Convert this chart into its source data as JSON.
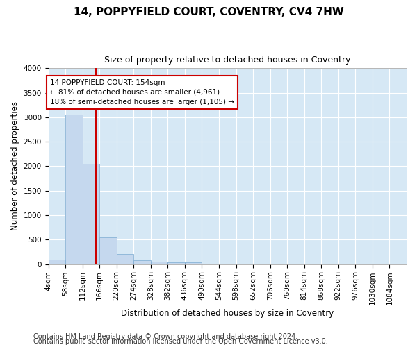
{
  "title": "14, POPPYFIELD COURT, COVENTRY, CV4 7HW",
  "subtitle": "Size of property relative to detached houses in Coventry",
  "xlabel": "Distribution of detached houses by size in Coventry",
  "ylabel": "Number of detached properties",
  "footer_line1": "Contains HM Land Registry data © Crown copyright and database right 2024.",
  "footer_line2": "Contains public sector information licensed under the Open Government Licence v3.0.",
  "property_size": 154,
  "annotation_line1": "14 POPPYFIELD COURT: 154sqm",
  "annotation_line2": "← 81% of detached houses are smaller (4,961)",
  "annotation_line3": "18% of semi-detached houses are larger (1,105) →",
  "bar_left_edges": [
    4,
    58,
    112,
    166,
    220,
    274,
    328,
    382,
    436,
    490,
    544,
    598,
    652,
    706,
    760,
    814,
    868,
    922,
    976,
    1030
  ],
  "bar_heights": [
    100,
    3050,
    2050,
    550,
    200,
    80,
    55,
    35,
    30,
    5,
    0,
    0,
    0,
    0,
    0,
    0,
    0,
    0,
    0,
    0
  ],
  "bin_width": 54,
  "bar_color": "#c5d8ee",
  "bar_edge_color": "#7aaad0",
  "vline_color": "#cc0000",
  "vline_x": 154,
  "annotation_box_color": "#cc0000",
  "ylim": [
    0,
    4000
  ],
  "yticks": [
    0,
    500,
    1000,
    1500,
    2000,
    2500,
    3000,
    3500,
    4000
  ],
  "xtick_labels": [
    "4sqm",
    "58sqm",
    "112sqm",
    "166sqm",
    "220sqm",
    "274sqm",
    "328sqm",
    "382sqm",
    "436sqm",
    "490sqm",
    "544sqm",
    "598sqm",
    "652sqm",
    "706sqm",
    "760sqm",
    "814sqm",
    "868sqm",
    "922sqm",
    "976sqm",
    "1030sqm",
    "1084sqm"
  ],
  "background_color": "#d6e8f5",
  "grid_color": "#ffffff",
  "fig_background": "#ffffff",
  "title_fontsize": 11,
  "subtitle_fontsize": 9,
  "axis_label_fontsize": 8.5,
  "tick_fontsize": 7.5,
  "footer_fontsize": 7,
  "annotation_fontsize": 7.5
}
